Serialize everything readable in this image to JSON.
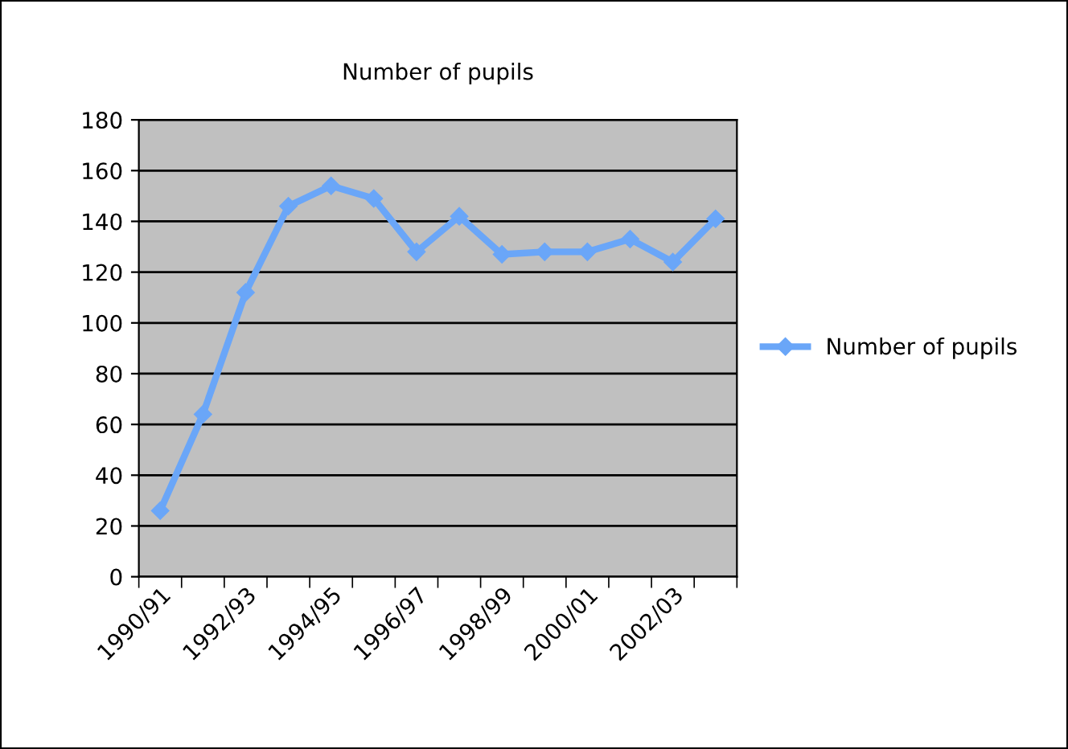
{
  "chart_data": {
    "type": "line",
    "title": "Number of pupils",
    "categories": [
      "1990/91",
      null,
      "1992/93",
      null,
      "1994/95",
      null,
      "1996/97",
      null,
      "1998/99",
      null,
      "2000/01",
      null,
      "2002/03",
      null
    ],
    "series": [
      {
        "name": "Number of pupils",
        "color": "#6aa6f8",
        "values": [
          26,
          64,
          112,
          146,
          154,
          149,
          128,
          142,
          127,
          128,
          128,
          133,
          124,
          141
        ]
      }
    ],
    "ylim": [
      0,
      180
    ],
    "yticks": [
      0,
      20,
      40,
      60,
      80,
      100,
      120,
      140,
      160,
      180
    ],
    "grid": "y",
    "legend": "right",
    "marker": "diamond",
    "line_style": "solid"
  }
}
